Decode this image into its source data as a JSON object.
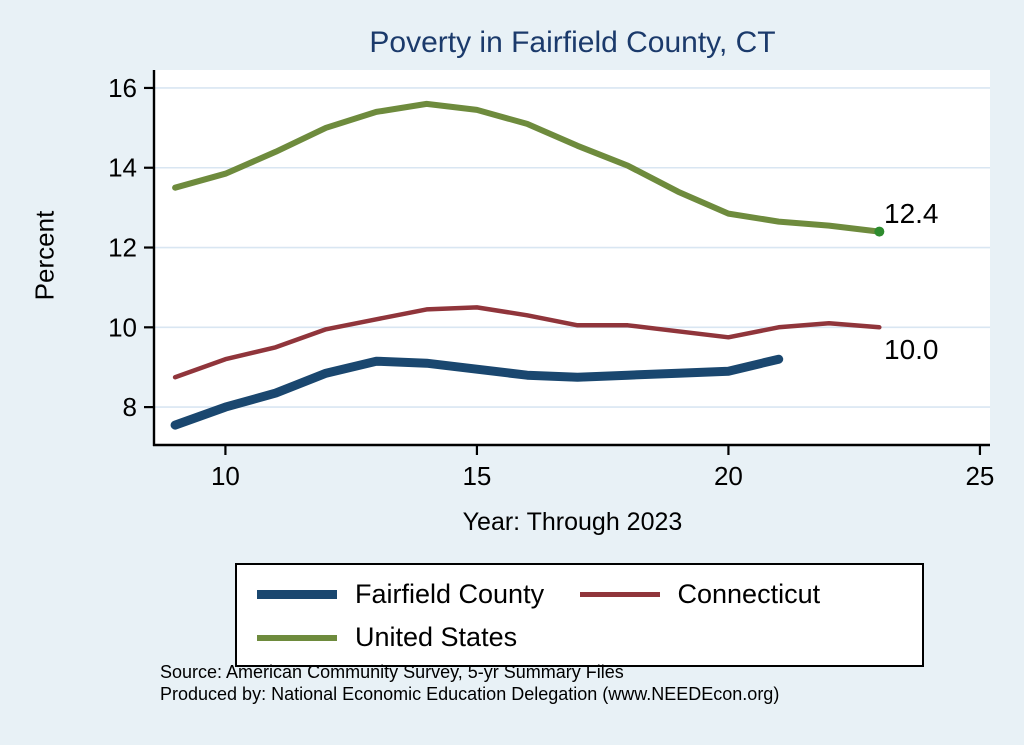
{
  "title": "Poverty in Fairfield County, CT",
  "ylabel": "Percent",
  "xlabel": "Year: Through 2023",
  "annotations": {
    "us_end": "12.4",
    "ct_end": "10.0"
  },
  "legend": {
    "items": [
      {
        "label": "Fairfield County",
        "color": "#1a476f",
        "line_height": 9
      },
      {
        "label": "Connecticut",
        "color": "#90353b",
        "line_height": 5
      },
      {
        "label": "United States",
        "color": "#6e8b3d",
        "line_height": 6
      }
    ]
  },
  "source_line1": "Source: American Community Survey, 5-yr Summary Files",
  "source_line2": "Produced by: National Economic Education Delegation (www.NEEDEcon.org)",
  "chart_data": {
    "type": "line",
    "title": "Poverty in Fairfield County, CT",
    "xlabel": "Year: Through 2023",
    "ylabel": "Percent",
    "xlim": [
      8.6,
      25.2
    ],
    "ylim": [
      7.05,
      16.45
    ],
    "xticks": [
      10,
      15,
      20,
      25
    ],
    "yticks": [
      8,
      10,
      12,
      14,
      16
    ],
    "grid": "horizontal",
    "grid_color": "#d9e6f2",
    "background": "#e8f1f6",
    "plot_background": "#ffffff",
    "series": [
      {
        "name": "Fairfield County",
        "color": "#1a476f",
        "line_width": 9,
        "x": [
          9,
          10,
          11,
          12,
          13,
          14,
          15,
          16,
          17,
          18,
          19,
          20,
          21
        ],
        "y": [
          7.55,
          8.0,
          8.35,
          8.85,
          9.15,
          9.1,
          8.95,
          8.8,
          8.75,
          8.8,
          8.85,
          8.9,
          9.2
        ]
      },
      {
        "name": "Connecticut",
        "color": "#90353b",
        "line_width": 4.5,
        "x": [
          9,
          10,
          11,
          12,
          13,
          14,
          15,
          16,
          17,
          18,
          19,
          20,
          21,
          22,
          23
        ],
        "y": [
          8.75,
          9.2,
          9.5,
          9.95,
          10.2,
          10.45,
          10.5,
          10.3,
          10.05,
          10.05,
          9.9,
          9.75,
          10.0,
          10.1,
          10.0
        ]
      },
      {
        "name": "United States",
        "color": "#6e8b3d",
        "line_width": 6,
        "x": [
          9,
          10,
          11,
          12,
          13,
          14,
          15,
          16,
          17,
          18,
          19,
          20,
          21,
          22,
          23
        ],
        "y": [
          13.5,
          13.85,
          14.4,
          15.0,
          15.4,
          15.6,
          15.45,
          15.1,
          14.55,
          14.05,
          13.4,
          12.85,
          12.65,
          12.55,
          12.4
        ],
        "end_marker": true,
        "end_marker_color": "#2e8b2e"
      }
    ]
  }
}
